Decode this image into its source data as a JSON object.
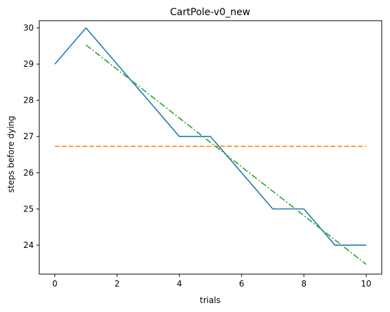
{
  "chart_data": {
    "type": "line",
    "title": "CartPole-v0_new",
    "xlabel": "trials",
    "ylabel": "steps before dying",
    "xlim": [
      -0.5,
      10.5
    ],
    "ylim": [
      23.2,
      30.2
    ],
    "x_ticks": [
      0,
      2,
      4,
      6,
      8,
      10
    ],
    "y_ticks": [
      24,
      25,
      26,
      27,
      28,
      29,
      30
    ],
    "grid": false,
    "legend": "none",
    "series": [
      {
        "color": "#1f77b4",
        "style": "solid",
        "x": [
          0,
          1,
          2,
          3,
          4,
          5,
          6,
          7,
          8,
          9,
          10
        ],
        "y": [
          29,
          30,
          29,
          28,
          27,
          27,
          26,
          25,
          25,
          24,
          24
        ]
      },
      {
        "color": "#ff7f0e",
        "style": "dashed",
        "x": [
          0,
          10
        ],
        "y": [
          26.73,
          26.73
        ]
      },
      {
        "color": "#2ca02c",
        "style": "dashdot",
        "x": [
          1,
          10
        ],
        "y": [
          29.53,
          23.47
        ]
      }
    ]
  }
}
